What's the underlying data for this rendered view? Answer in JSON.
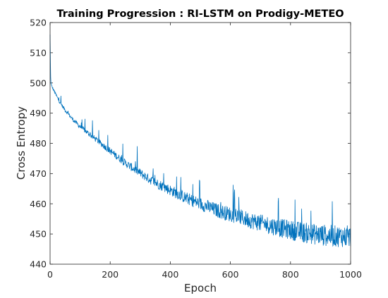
{
  "chart_data": {
    "type": "line",
    "title": "Training Progression : RI-LSTM on Prodigy-METEO",
    "xlabel": "Epoch",
    "ylabel": "Cross Entropy",
    "xlim": [
      0,
      1000
    ],
    "ylim": [
      440,
      520
    ],
    "xticks": [
      "0",
      "200",
      "400",
      "600",
      "800",
      "1000"
    ],
    "yticks": [
      "440",
      "450",
      "460",
      "470",
      "480",
      "490",
      "500",
      "510",
      "520"
    ],
    "grid": false,
    "legend": "none",
    "line_color": "#0072BD",
    "series": [
      {
        "x": [
          0,
          1,
          2,
          3,
          5,
          10,
          20,
          30,
          50,
          75,
          100,
          125,
          150,
          175,
          200,
          225,
          250,
          275,
          300,
          325,
          350,
          375,
          400,
          425,
          450,
          475,
          500,
          525,
          550,
          575,
          600,
          625,
          650,
          675,
          700,
          725,
          750,
          775,
          800,
          825,
          850,
          875,
          900,
          925,
          950,
          975,
          1000
        ],
        "values": [
          516,
          508,
          502,
          500,
          499,
          498,
          496,
          494,
          491,
          488,
          485.5,
          483.5,
          481.5,
          479.5,
          477.5,
          475.5,
          473.5,
          471.8,
          470.2,
          468.5,
          467,
          465.8,
          464.5,
          463.3,
          462,
          461,
          460,
          459,
          458,
          457.2,
          456.5,
          455.8,
          455,
          454.3,
          453.6,
          453,
          452.4,
          451.8,
          451.3,
          450.8,
          450.4,
          450,
          449.7,
          449.5,
          449.3,
          449.2,
          449
        ]
      }
    ]
  }
}
